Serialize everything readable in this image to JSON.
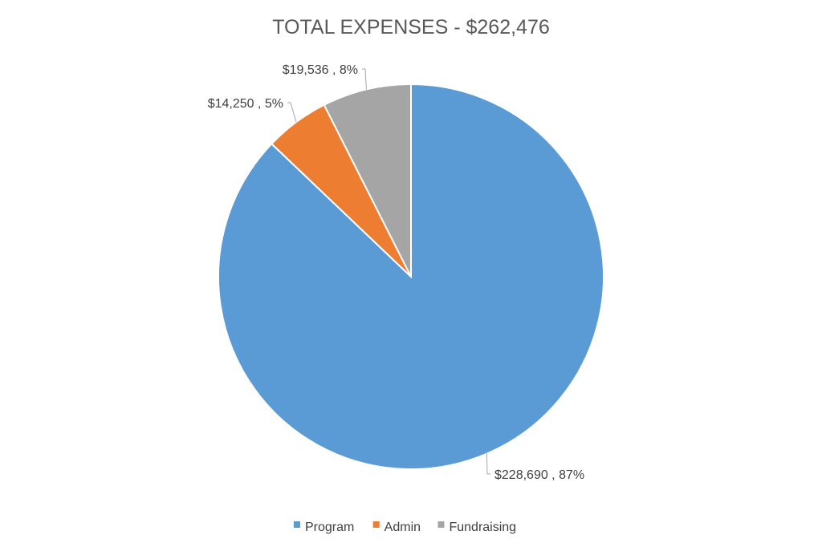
{
  "chart_data": {
    "type": "pie",
    "title": "TOTAL EXPENSES - $262,476",
    "categories": [
      "Program",
      "Admin",
      "Fundraising"
    ],
    "values": [
      228690,
      14250,
      19536
    ],
    "percent_labels": [
      "87%",
      "5%",
      "8%"
    ],
    "data_labels": [
      "$228,690 , 87%",
      "$14,250 , 5%",
      "$19,536 , 8%"
    ],
    "colors": [
      "#5b9bd5",
      "#ed7d31",
      "#a5a5a5"
    ],
    "start_angle_deg": 0,
    "direction": "clockwise",
    "legend": {
      "position": "bottom",
      "entries": [
        "Program",
        "Admin",
        "Fundraising"
      ]
    }
  }
}
